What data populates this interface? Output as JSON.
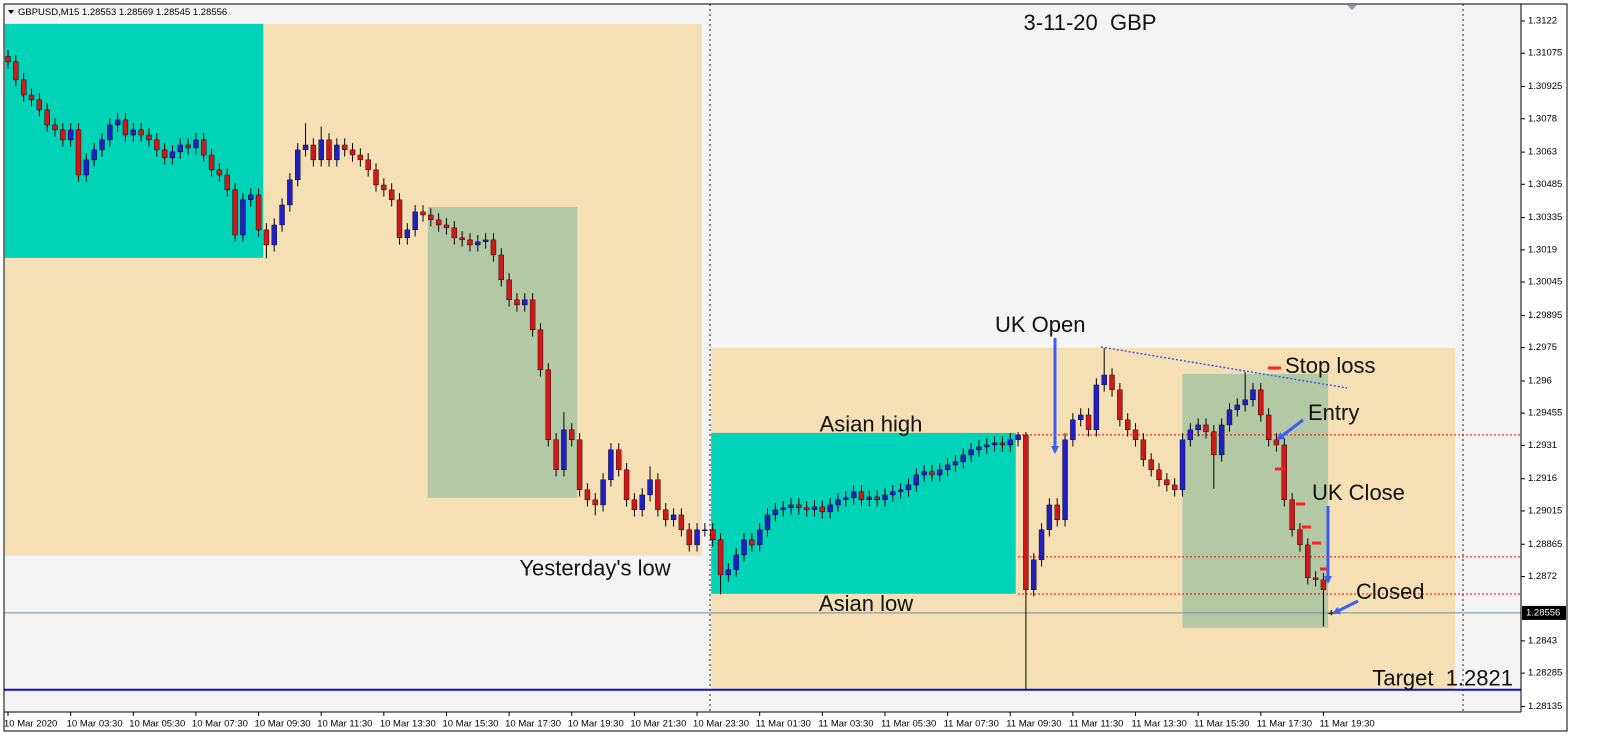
{
  "chart_data": {
    "type": "candlestick",
    "symbol": "GBPUSD,M15",
    "title": "3-11-20  GBP",
    "up_color": "#1f1fc4",
    "down_color": "#d01818",
    "ylim": [
      1.2811,
      1.31292
    ],
    "yticks": [
      1.3122,
      1.31075,
      1.30925,
      1.3078,
      1.3063,
      1.30485,
      1.30335,
      1.3019,
      1.30045,
      1.29895,
      1.2975,
      1.296,
      1.29455,
      1.2931,
      1.2916,
      1.29015,
      1.28865,
      1.2872,
      1.2843,
      1.28285,
      1.28135
    ],
    "categories": [
      "10 Mar 2020",
      null,
      null,
      null,
      null,
      null,
      null,
      null,
      "10 Mar 03:30",
      null,
      null,
      null,
      null,
      null,
      null,
      null,
      "10 Mar 05:30",
      null,
      null,
      null,
      null,
      null,
      null,
      null,
      "10 Mar 07:30",
      null,
      null,
      null,
      null,
      null,
      null,
      null,
      "10 Mar 09:30",
      null,
      null,
      null,
      null,
      null,
      null,
      null,
      "10 Mar 11:30",
      null,
      null,
      null,
      null,
      null,
      null,
      null,
      "10 Mar 13:30",
      null,
      null,
      null,
      null,
      null,
      null,
      null,
      "10 Mar 15:30",
      null,
      null,
      null,
      null,
      null,
      null,
      null,
      "10 Mar 17:30",
      null,
      null,
      null,
      null,
      null,
      null,
      null,
      "10 Mar 19:30",
      null,
      null,
      null,
      null,
      null,
      null,
      null,
      "10 Mar 21:30",
      null,
      null,
      null,
      null,
      null,
      null,
      null,
      "10 Mar 23:30",
      null,
      null,
      null,
      null,
      null,
      null,
      null,
      "11 Mar 01:30",
      null,
      null,
      null,
      null,
      null,
      null,
      null,
      "11 Mar 03:30",
      null,
      null,
      null,
      null,
      null,
      null,
      null,
      "11 Mar 05:30",
      null,
      null,
      null,
      null,
      null,
      null,
      null,
      "11 Mar 07:30",
      null,
      null,
      null,
      null,
      null,
      null,
      null,
      "11 Mar 09:30",
      null,
      null,
      null,
      null,
      null,
      null,
      null,
      "11 Mar 11:30",
      null,
      null,
      null,
      null,
      null,
      null,
      null,
      "11 Mar 13:30",
      null,
      null,
      null,
      null,
      null,
      null,
      null,
      "11 Mar 15:30",
      null,
      null,
      null,
      null,
      null,
      null,
      null,
      "11 Mar 17:30",
      null,
      null,
      null,
      null,
      null,
      null,
      null,
      "11 Mar 19:30",
      null
    ],
    "open": [
      1.3106,
      1.31036,
      1.30955,
      1.30887,
      1.30865,
      1.3082,
      1.30752,
      1.3073,
      1.30685,
      1.3073,
      1.30527,
      1.30595,
      1.3064,
      1.30685,
      1.30752,
      1.30775,
      1.30707,
      1.3073,
      1.30707,
      1.30685,
      1.3064,
      1.30604,
      1.30631,
      1.30662,
      1.30649,
      1.30685,
      1.30617,
      1.3055,
      1.30527,
      1.3046,
      1.30257,
      1.30415,
      1.30437,
      1.3028,
      1.30212,
      1.30302,
      1.30392,
      1.30505,
      1.3064,
      1.30662,
      1.30595,
      1.30685,
      1.30595,
      1.30662,
      1.3064,
      1.30617,
      1.30595,
      1.3055,
      1.30482,
      1.3046,
      1.30415,
      1.30244,
      1.3028,
      1.30361,
      1.30347,
      1.30325,
      1.30302,
      1.30289,
      1.30244,
      1.30235,
      1.30212,
      1.30226,
      1.30235,
      1.30167,
      1.30055,
      1.29965,
      1.29942,
      1.29965,
      1.2983,
      1.2965,
      1.29335,
      1.292,
      1.2938,
      1.29335,
      1.2911,
      1.29065,
      1.29042,
      1.29155,
      1.2929,
      1.292,
      1.29065,
      1.2902,
      1.29087,
      1.29155,
      1.2902,
      1.28975,
      1.28997,
      1.2893,
      1.28862,
      1.2893,
      1.2893,
      1.28885,
      1.28727,
      1.2875,
      1.28817,
      1.28885,
      1.28862,
      1.2893,
      1.28997,
      1.2902,
      1.29029,
      1.29042,
      1.29029,
      1.2902,
      1.29033,
      1.29011,
      1.29042,
      1.29065,
      1.29074,
      1.29101,
      1.29065,
      1.29078,
      1.29065,
      1.29087,
      1.29101,
      1.2911,
      1.29132,
      1.29177,
      1.29191,
      1.29177,
      1.292,
      1.29222,
      1.29236,
      1.29267,
      1.2929,
      1.29303,
      1.29312,
      1.29321,
      1.29312,
      1.29335,
      1.29357,
      1.2866,
      1.28795,
      1.2893,
      1.29042,
      1.28975,
      1.29335,
      1.29425,
      1.29447,
      1.2938,
      1.29582,
      1.29627,
      1.2956,
      1.29425,
      1.2938,
      1.29335,
      1.29245,
      1.292,
      1.29155,
      1.29132,
      1.2911,
      1.29335,
      1.2938,
      1.29402,
      1.29371,
      1.29267,
      1.29402,
      1.2947,
      1.29492,
      1.29515,
      1.2956,
      1.29447,
      1.29335,
      1.29312,
      1.29065,
      1.2893,
      1.28862,
      1.28714,
      1.28705,
      1.28553
    ],
    "high": [
      1.3109,
      1.31066,
      1.30985,
      1.30917,
      1.30895,
      1.3085,
      1.30782,
      1.3076,
      1.3076,
      1.3076,
      1.30625,
      1.3067,
      1.30715,
      1.30782,
      1.30805,
      1.30805,
      1.3076,
      1.3076,
      1.30737,
      1.30715,
      1.3067,
      1.30661,
      1.30692,
      1.30692,
      1.30715,
      1.30715,
      1.30647,
      1.3058,
      1.30557,
      1.3049,
      1.30445,
      1.30467,
      1.30467,
      1.3031,
      1.30332,
      1.30422,
      1.30535,
      1.3067,
      1.3076,
      1.30692,
      1.30745,
      1.30715,
      1.30692,
      1.30692,
      1.3067,
      1.30647,
      1.30625,
      1.3058,
      1.30512,
      1.3049,
      1.30445,
      1.3031,
      1.30391,
      1.30391,
      1.30377,
      1.30355,
      1.30332,
      1.30319,
      1.30274,
      1.30265,
      1.30256,
      1.30265,
      1.30265,
      1.30197,
      1.30085,
      1.29995,
      1.29995,
      1.29995,
      1.2986,
      1.2968,
      1.29365,
      1.2946,
      1.2941,
      1.29365,
      1.2914,
      1.29095,
      1.29185,
      1.2932,
      1.2932,
      1.2923,
      1.29095,
      1.29117,
      1.29215,
      1.29185,
      1.2905,
      1.29027,
      1.29027,
      1.2896,
      1.2896,
      1.2896,
      1.2896,
      1.28915,
      1.2878,
      1.28847,
      1.28915,
      1.28915,
      1.2896,
      1.29027,
      1.2905,
      1.29059,
      1.29072,
      1.29072,
      1.29059,
      1.29063,
      1.29063,
      1.29072,
      1.29095,
      1.29104,
      1.29131,
      1.29131,
      1.29108,
      1.29108,
      1.29117,
      1.29131,
      1.2914,
      1.29162,
      1.29207,
      1.29221,
      1.29221,
      1.2923,
      1.29252,
      1.29266,
      1.29297,
      1.2932,
      1.29333,
      1.29342,
      1.29351,
      1.29351,
      1.29365,
      1.2937,
      1.2937,
      1.28825,
      1.2896,
      1.29072,
      1.29072,
      1.29365,
      1.29455,
      1.29477,
      1.29477,
      1.29612,
      1.29748,
      1.29657,
      1.2959,
      1.29455,
      1.2941,
      1.29365,
      1.29275,
      1.2923,
      1.29185,
      1.29162,
      1.29365,
      1.2941,
      1.29432,
      1.29432,
      1.29401,
      1.29432,
      1.295,
      1.29522,
      1.2964,
      1.2959,
      1.2959,
      1.29477,
      1.29365,
      1.29342,
      1.29095,
      1.2896,
      1.28892,
      1.28744,
      1.28735,
      1.28569
    ],
    "low": [
      1.31006,
      1.30925,
      1.30857,
      1.30835,
      1.3079,
      1.30722,
      1.307,
      1.30655,
      1.30655,
      1.30497,
      1.30497,
      1.30565,
      1.3061,
      1.30655,
      1.30722,
      1.30677,
      1.30677,
      1.30677,
      1.30655,
      1.3061,
      1.30574,
      1.30574,
      1.30601,
      1.30619,
      1.30619,
      1.30587,
      1.3052,
      1.30497,
      1.3043,
      1.30227,
      1.30227,
      1.30385,
      1.3025,
      1.30152,
      1.30182,
      1.30272,
      1.30362,
      1.30475,
      1.3061,
      1.30565,
      1.30565,
      1.30565,
      1.30565,
      1.3061,
      1.30587,
      1.30565,
      1.3052,
      1.30452,
      1.3043,
      1.30385,
      1.30214,
      1.30214,
      1.3025,
      1.30317,
      1.30295,
      1.30272,
      1.30259,
      1.30214,
      1.30205,
      1.30182,
      1.30182,
      1.30196,
      1.30137,
      1.30025,
      1.29935,
      1.29912,
      1.29912,
      1.298,
      1.2962,
      1.29305,
      1.2917,
      1.2917,
      1.29305,
      1.2908,
      1.29035,
      1.28995,
      1.29012,
      1.29125,
      1.2917,
      1.29035,
      1.2899,
      1.2899,
      1.29057,
      1.2899,
      1.28945,
      1.28945,
      1.289,
      1.28832,
      1.28832,
      1.289,
      1.28855,
      1.2864,
      1.28697,
      1.2872,
      1.28787,
      1.28832,
      1.28832,
      1.289,
      1.28967,
      1.2899,
      1.28999,
      1.28999,
      1.2899,
      1.2899,
      1.28981,
      1.28981,
      1.29012,
      1.29035,
      1.29044,
      1.29035,
      1.29035,
      1.29035,
      1.29035,
      1.29057,
      1.29071,
      1.2908,
      1.29102,
      1.29147,
      1.29147,
      1.29147,
      1.2917,
      1.29192,
      1.29206,
      1.29237,
      1.2926,
      1.29273,
      1.29282,
      1.29282,
      1.29282,
      1.29305,
      1.2821,
      1.2863,
      1.28765,
      1.289,
      1.28945,
      1.28945,
      1.29305,
      1.29395,
      1.2935,
      1.2935,
      1.29552,
      1.2953,
      1.29395,
      1.2935,
      1.29305,
      1.29215,
      1.2917,
      1.29125,
      1.29102,
      1.2908,
      1.2908,
      1.29305,
      1.2935,
      1.29341,
      1.29115,
      1.29237,
      1.29372,
      1.2944,
      1.29462,
      1.29485,
      1.29417,
      1.29305,
      1.29282,
      1.29035,
      1.289,
      1.28832,
      1.28684,
      1.28675,
      1.28495,
      1.28545
    ],
    "close": [
      1.31036,
      1.30955,
      1.30887,
      1.30865,
      1.3082,
      1.30752,
      1.3073,
      1.30685,
      1.3073,
      1.30527,
      1.30595,
      1.3064,
      1.30685,
      1.30752,
      1.30775,
      1.30707,
      1.3073,
      1.30707,
      1.30685,
      1.3064,
      1.30604,
      1.30631,
      1.30662,
      1.30649,
      1.30685,
      1.30617,
      1.3055,
      1.30527,
      1.3046,
      1.30257,
      1.30415,
      1.30437,
      1.3028,
      1.30212,
      1.30302,
      1.30392,
      1.30505,
      1.3064,
      1.30662,
      1.30595,
      1.30685,
      1.30595,
      1.30662,
      1.3064,
      1.30617,
      1.30595,
      1.3055,
      1.30482,
      1.3046,
      1.30415,
      1.30244,
      1.3028,
      1.30361,
      1.30347,
      1.30325,
      1.30302,
      1.30289,
      1.30244,
      1.30235,
      1.30212,
      1.30226,
      1.30235,
      1.30167,
      1.30055,
      1.29965,
      1.29942,
      1.29965,
      1.2983,
      1.2965,
      1.29335,
      1.292,
      1.2938,
      1.29335,
      1.2911,
      1.29065,
      1.29042,
      1.29155,
      1.2929,
      1.292,
      1.29065,
      1.2902,
      1.29087,
      1.29155,
      1.2902,
      1.28975,
      1.28997,
      1.2893,
      1.28862,
      1.2893,
      1.2893,
      1.28885,
      1.28727,
      1.2875,
      1.28817,
      1.28885,
      1.28862,
      1.2893,
      1.28997,
      1.2902,
      1.29029,
      1.29042,
      1.29029,
      1.2902,
      1.29033,
      1.29011,
      1.29042,
      1.29065,
      1.29074,
      1.29101,
      1.29065,
      1.29078,
      1.29065,
      1.29087,
      1.29101,
      1.2911,
      1.29132,
      1.29177,
      1.29191,
      1.29177,
      1.292,
      1.29222,
      1.29236,
      1.29267,
      1.2929,
      1.29303,
      1.29312,
      1.29321,
      1.29312,
      1.29335,
      1.29357,
      1.2866,
      1.28795,
      1.2893,
      1.29042,
      1.28975,
      1.29335,
      1.29425,
      1.29447,
      1.2938,
      1.29582,
      1.29627,
      1.2956,
      1.29425,
      1.2938,
      1.29335,
      1.29245,
      1.292,
      1.29155,
      1.29132,
      1.2911,
      1.29335,
      1.2938,
      1.29402,
      1.29371,
      1.29267,
      1.29402,
      1.2947,
      1.29492,
      1.29515,
      1.2956,
      1.29447,
      1.29335,
      1.29312,
      1.29065,
      1.2893,
      1.28862,
      1.28714,
      1.28705,
      1.2866,
      1.28556
    ],
    "zones": [
      {
        "x": [
          -0.4,
          88.6
        ],
        "y": [
          1.28813,
          1.31207
        ],
        "color": "#f5dfb4"
      },
      {
        "x": [
          89.8,
          184.8
        ],
        "y": [
          1.2821,
          1.29749
        ],
        "color": "#f5dfb4"
      },
      {
        "x": [
          -0.4,
          32.6
        ],
        "y": [
          1.30154,
          1.31207
        ],
        "color": "#00d4b8"
      },
      {
        "x": [
          53.6,
          72.7
        ],
        "y": [
          1.29074,
          1.30383
        ],
        "color": "#b3c9a5"
      },
      {
        "x": [
          89.8,
          128.7
        ],
        "y": [
          1.28642,
          1.29366
        ],
        "color": "#00d4b8"
      },
      {
        "x": [
          150.0,
          168.6
        ],
        "y": [
          1.28489,
          1.29632
        ],
        "color": "#b3c9a5"
      }
    ],
    "levels": [
      {
        "text": "Asian high",
        "value": 1.29357,
        "color": "#ff0000"
      },
      {
        "text": "Yesterday's low",
        "value": 1.28808,
        "color": "#ff0000"
      },
      {
        "text": "Asian low",
        "value": 1.28641,
        "color": "#ff0000"
      },
      {
        "text": "Target  1.2821",
        "value": 1.2821,
        "color": "#1010c8"
      }
    ],
    "annotations": [
      "UK Open",
      "Stop loss",
      "Entry",
      "UK Close",
      "Closed"
    ]
  }
}
